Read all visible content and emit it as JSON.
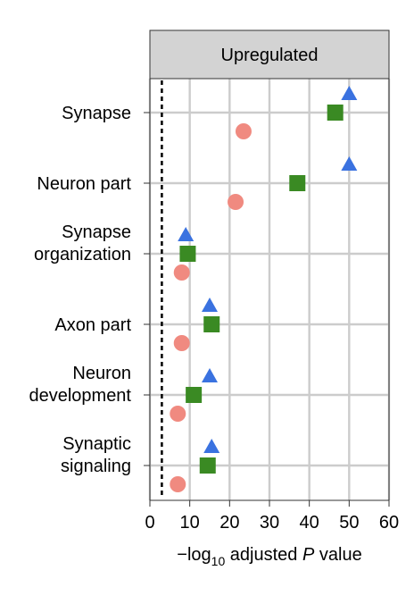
{
  "chart_data": {
    "type": "scatter",
    "panel_title": "Upregulated",
    "xlabel_parts": [
      "−log",
      "10",
      " adjusted ",
      "P",
      " value"
    ],
    "xlim": [
      0,
      60
    ],
    "x_ticks": [
      "0",
      "10",
      "20",
      "30",
      "40",
      "50",
      "60"
    ],
    "threshold_line": {
      "x": 3,
      "style": "dotted"
    },
    "categories": [
      [
        "Synapse"
      ],
      [
        "Neuron part"
      ],
      [
        "Synapse",
        "organization"
      ],
      [
        "Axon part"
      ],
      [
        "Neuron",
        "development"
      ],
      [
        "Synaptic",
        "signaling"
      ]
    ],
    "series": [
      {
        "marker": "triangle",
        "color": "#3a72e0",
        "values": [
          50,
          50,
          9,
          15,
          15,
          15.5
        ]
      },
      {
        "marker": "square",
        "color": "#3a8a23",
        "values": [
          46.5,
          37,
          9.5,
          15.5,
          11,
          14.5
        ]
      },
      {
        "marker": "circle",
        "color": "#f08a80",
        "values": [
          23.5,
          21.5,
          8,
          8,
          7,
          7
        ]
      }
    ],
    "grid": true
  }
}
